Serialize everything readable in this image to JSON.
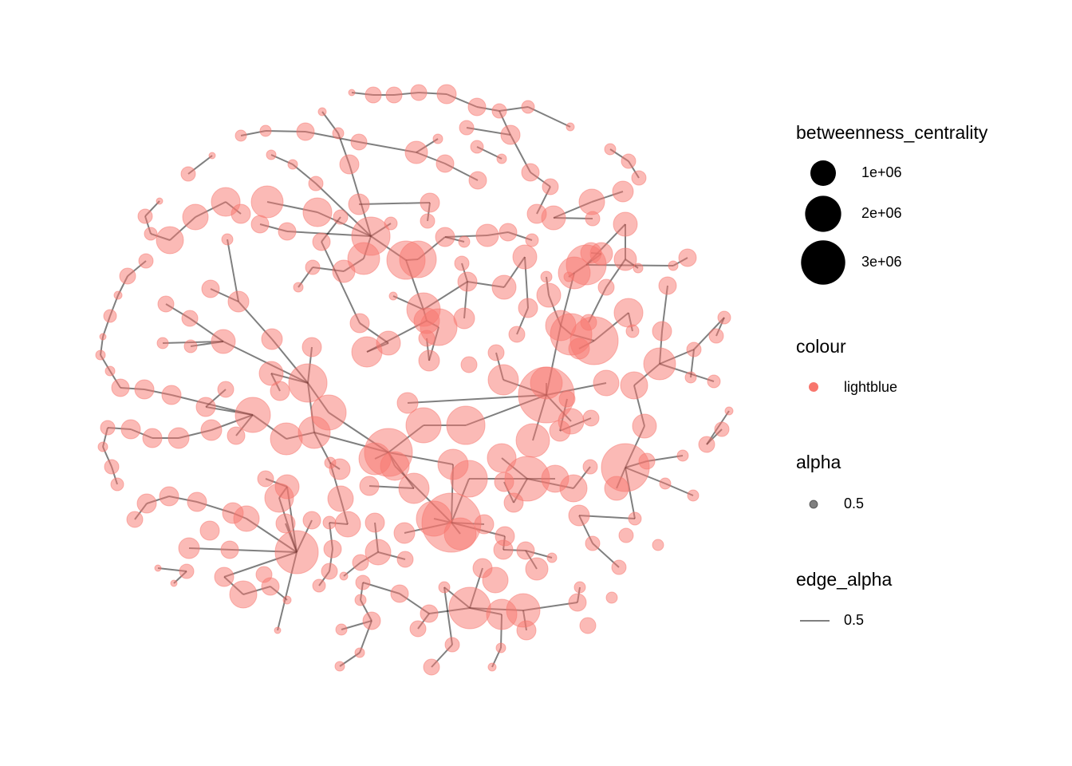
{
  "chart_data": {
    "type": "network",
    "nodes": {
      "betweenness_centrality": [
        62500,
        391000,
        391000,
        391000,
        563000,
        473000,
        316000,
        250000,
        97700,
        97700,
        191000,
        191000,
        473000,
        191000,
        391000,
        766000,
        141000,
        316000,
        250000,
        563000,
        141000,
        62500,
        141000,
        141000,
        563000,
        473000,
        473000,
        191000,
        316000,
        316000,
        316000,
        316000,
        473000,
        391000,
        660000,
        62500,
        1270000,
        1560000,
        660000,
        563000,
        1000000,
        316000,
        1000000,
        563000,
        473000,
        1270000,
        316000,
        250000,
        316000,
        563000,
        879000,
        316000,
        879000,
        250000,
        1130000,
        473000,
        473000,
        2250000,
        191000,
        563000,
        766000,
        473000,
        1560000,
        2250000,
        2070000,
        191000,
        250000,
        660000,
        766000,
        766000,
        2440000,
        316000,
        316000,
        766000,
        316000,
        879000,
        1560000,
        391000,
        141000,
        473000,
        141000,
        391000,
        473000,
        141000,
        97700,
        563000,
        879000,
        191000,
        141000,
        473000,
        97700,
        660000,
        391000,
        1720000,
        563000,
        879000,
        1270000,
        391000,
        250000,
        563000,
        1000000,
        2070000,
        660000,
        1410000,
        391000,
        3520000,
        250000,
        563000,
        250000,
        62500,
        191000,
        250000,
        879000,
        660000,
        563000,
        1410000,
        879000,
        391000,
        391000,
        2640000,
        660000,
        391000,
        316000,
        316000,
        141000,
        660000,
        391000,
        1560000,
        141000,
        879000,
        2250000,
        1410000,
        1560000,
        1000000,
        1130000,
        191000,
        250000,
        473000,
        563000,
        563000,
        391000,
        563000,
        4790000,
        391000,
        563000,
        1890000,
        1890000,
        660000,
        1890000,
        2250000,
        1000000,
        391000,
        97700,
        316000,
        563000,
        563000,
        660000,
        660000,
        473000,
        1560000,
        1560000,
        1720000,
        660000,
        879000,
        316000,
        141000,
        3520000,
        1560000,
        1270000,
        391000,
        316000,
        191000,
        660000,
        1410000,
        1270000,
        3060000,
        3520000,
        391000,
        191000,
        250000,
        391000,
        879000,
        563000,
        1410000,
        2070000,
        563000,
        1130000,
        1130000,
        316000,
        879000,
        191000,
        191000,
        563000,
        563000,
        563000,
        660000,
        1000000,
        1270000,
        1000000,
        563000,
        391000,
        473000,
        250000,
        1000000,
        563000,
        660000,
        1890000,
        5350000,
        1560000,
        563000,
        660000,
        250000,
        563000,
        563000,
        563000,
        316000,
        316000,
        660000,
        473000,
        2850000,
        473000,
        1000000,
        391000,
        563000,
        473000,
        141000,
        191000,
        62500,
        316000,
        563000,
        391000,
        391000,
        391000,
        563000,
        1000000,
        766000,
        316000,
        62500,
        1130000,
        473000,
        250000,
        97700,
        316000,
        191000,
        473000,
        191000,
        97700,
        191000,
        473000,
        191000,
        2640000,
        473000,
        1410000,
        1720000,
        473000,
        62500,
        191000,
        391000,
        563000,
        391000,
        141000,
        316000,
        141000,
        141000,
        391000,
        97700
      ]
    },
    "node_color": "#f8766d",
    "edge_color": "#000000",
    "size_legend": {
      "title": "betweenness_centrality",
      "breaks": [
        {
          "value": 1000000,
          "label": "1e+06"
        },
        {
          "value": 2000000,
          "label": "2e+06"
        },
        {
          "value": 3000000,
          "label": "3e+06"
        }
      ]
    },
    "colour_legend": {
      "title": "colour",
      "labels": [
        "lightblue"
      ]
    },
    "alpha_legend": {
      "title": "alpha",
      "values": [
        0.5
      ]
    },
    "edge_alpha_legend": {
      "title": "edge_alpha",
      "values": [
        0.5
      ]
    }
  }
}
